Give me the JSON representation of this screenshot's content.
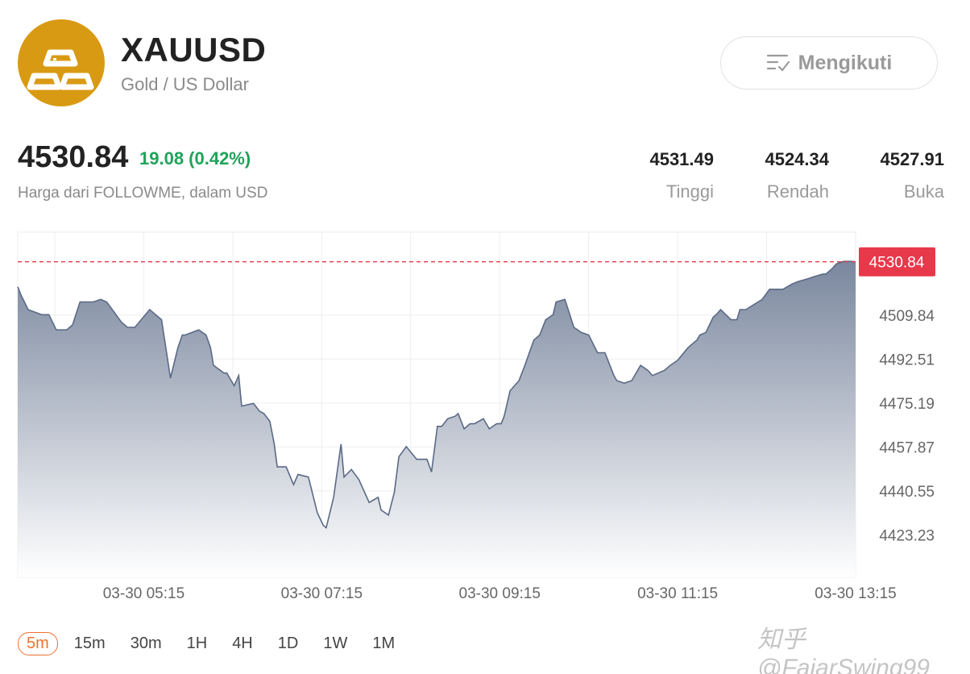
{
  "header": {
    "symbol": "XAUUSD",
    "subtitle": "Gold / US Dollar",
    "follow_label": "Mengikuti",
    "logo_icon": "gold-bars-icon",
    "logo_color": "#d99a13"
  },
  "quote": {
    "price": "4530.84",
    "change": "19.08 (0.42%)",
    "source": "Harga dari FOLLOWME, dalam USD",
    "change_color": "#1fa35a"
  },
  "stats": [
    {
      "value": "4531.49",
      "label": "Tinggi"
    },
    {
      "value": "4524.34",
      "label": "Rendah"
    },
    {
      "value": "4527.91",
      "label": "Buka"
    }
  ],
  "intervals": {
    "items": [
      "5m",
      "15m",
      "30m",
      "1H",
      "4H",
      "1D",
      "1W",
      "1M"
    ],
    "active": "5m",
    "active_color": "#f07030"
  },
  "watermark": "知乎 @FajarSwing99",
  "chart_data": {
    "type": "area",
    "current_price": 4530.84,
    "current_price_label": "4530.84",
    "price_line_color": "#e8394b",
    "y_ticks": [
      "4509.84",
      "4492.51",
      "4475.19",
      "4457.87",
      "4440.55",
      "4423.23"
    ],
    "y_tick_values": [
      4509.84,
      4492.51,
      4475.19,
      4457.87,
      4440.55,
      4423.23
    ],
    "x_ticks": [
      "03-30 05:15",
      "03-30 07:15",
      "03-30 09:15",
      "03-30 11:15",
      "03-30 13:15"
    ],
    "ylim": [
      4406.5,
      4542.5
    ],
    "x_range_minutes": [
      230,
      795
    ],
    "series": [
      {
        "x": [
          230,
          232,
          237,
          246,
          251,
          256,
          263,
          267,
          272,
          281,
          286,
          290,
          300,
          304,
          309,
          319,
          323,
          327,
          333,
          338,
          341,
          343,
          352,
          357,
          360,
          362,
          369,
          371,
          376,
          379,
          381,
          389,
          393,
          396,
          400,
          403,
          405,
          411,
          416,
          419,
          426,
          432,
          436,
          438,
          443,
          448,
          450,
          455,
          460,
          467,
          473,
          475,
          480,
          484,
          487,
          492,
          499,
          506,
          509,
          513,
          516,
          520,
          525,
          527,
          531,
          535,
          538,
          541,
          544,
          548,
          553,
          556,
          558,
          562,
          568,
          572,
          575,
          578,
          582,
          586,
          591,
          593,
          599,
          605,
          610,
          615,
          621,
          626,
          632,
          634,
          639,
          644,
          650,
          655,
          658,
          666,
          670,
          675,
          682,
          688,
          690,
          694,
          699,
          701,
          704,
          711,
          715,
          717,
          721,
          732,
          737,
          746,
          752,
          756,
          762,
          767,
          773,
          775,
          779,
          782,
          787,
          792,
          795
        ],
        "y": [
          4521,
          4518,
          4512,
          4510,
          4510,
          4504,
          4504,
          4506,
          4515,
          4515,
          4516,
          4515,
          4507,
          4505,
          4505,
          4512,
          4510,
          4508,
          4485,
          4497,
          4502,
          4502,
          4504,
          4502,
          4497,
          4490,
          4487,
          4487,
          4482,
          4486,
          4474,
          4475,
          4472,
          4471,
          4468,
          4459,
          4450,
          4450,
          4443,
          4447,
          4446,
          4432,
          4427,
          4426,
          4438,
          4459,
          4446,
          4449,
          4445,
          4436,
          4438,
          4433,
          4431,
          4440,
          4454,
          4458,
          4453,
          4453,
          4448,
          4466,
          4466,
          4469,
          4470,
          4471,
          4465,
          4467,
          4467,
          4468,
          4469,
          4465,
          4467,
          4467,
          4470,
          4480,
          4484,
          4490,
          4495,
          4500,
          4502,
          4508,
          4510,
          4515,
          4516,
          4505,
          4503,
          4502,
          4495,
          4495,
          4486,
          4484,
          4483,
          4484,
          4490,
          4488,
          4486,
          4488,
          4490,
          4492,
          4497,
          4500,
          4502,
          4503,
          4509,
          4510,
          4512,
          4508,
          4508,
          4512,
          4512,
          4516,
          4520,
          4520,
          4522,
          4523,
          4524,
          4525,
          4526,
          4526,
          4528,
          4530,
          4531,
          4531,
          4530.84
        ]
      }
    ],
    "line_color": "#5b6a86",
    "fill_color": "#8793a8"
  }
}
